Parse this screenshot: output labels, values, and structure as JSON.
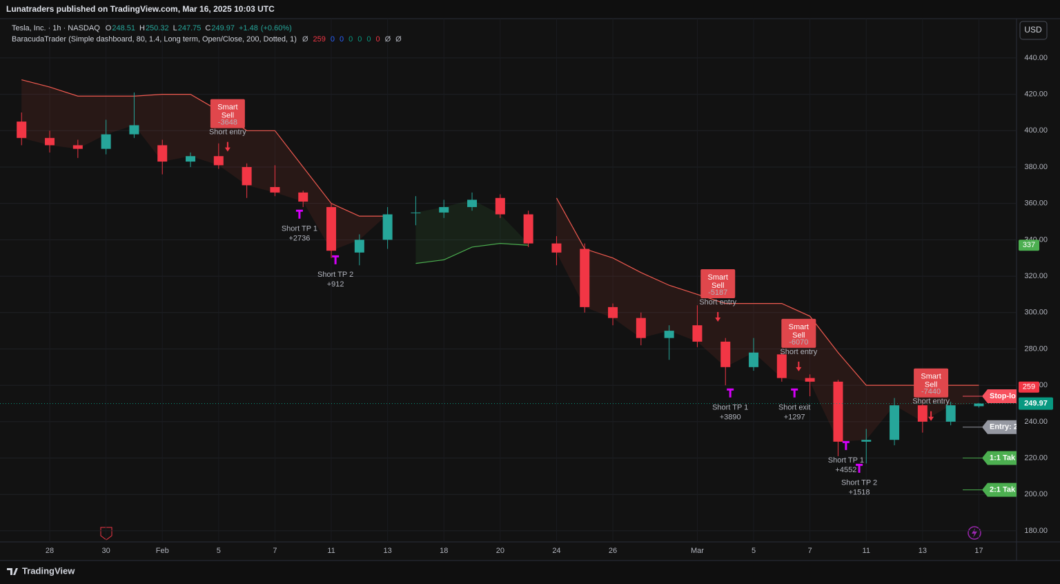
{
  "header": {
    "publisher": "Lunatraders published on TradingView.com, Mar 16, 2025 10:03 UTC",
    "currency": "USD",
    "footer": "TradingView"
  },
  "chart_data": {
    "type": "candlestick",
    "title": "Tesla, Inc. · 1h · NASDAQ",
    "ohlc_letters": [
      "O",
      "H",
      "L",
      "C"
    ],
    "change": "+1.48",
    "change_pct": "(+0.60%)",
    "indicator": {
      "name": "BaracudaTrader (Simple dashboard, 80, 1.4, Long term, Open/Close, 200, Dotted, 1)",
      "values": [
        "Ø",
        259,
        0,
        0,
        0,
        0,
        0,
        0,
        "Ø",
        "Ø"
      ],
      "colors": [
        "#b2b5be",
        "#f23645",
        "#2962ff",
        "#2962ff",
        "#089981",
        "#089981",
        "#089981",
        "#f23645",
        "#b2b5be",
        "#b2b5be"
      ]
    },
    "x": [
      -1,
      0,
      1,
      2,
      3,
      4,
      5,
      6,
      7,
      8,
      9,
      10,
      11,
      12,
      13,
      14,
      15,
      16,
      17,
      18,
      19,
      20,
      21,
      22,
      23,
      24,
      25,
      26,
      27,
      28,
      29,
      30,
      31,
      32,
      33
    ],
    "open": [
      405,
      396,
      392,
      390,
      398,
      392,
      383,
      386,
      380,
      369,
      366,
      358,
      333,
      340,
      355,
      355,
      358,
      363,
      354,
      338,
      335,
      303,
      297,
      286,
      293,
      284,
      270,
      277,
      264,
      262,
      229,
      230,
      249,
      240,
      248.51
    ],
    "high": [
      410,
      400,
      395,
      406,
      421,
      395,
      388,
      393,
      382,
      381,
      367,
      360,
      343,
      358,
      364,
      362,
      366,
      365,
      356,
      342,
      338,
      305,
      300,
      293,
      304,
      286,
      286,
      278,
      266,
      263,
      236,
      253,
      252,
      251,
      250.32
    ],
    "low": [
      392,
      388,
      385,
      387,
      396,
      376,
      380,
      379,
      363,
      364,
      358,
      330,
      326,
      335,
      348,
      352,
      356,
      352,
      336,
      326,
      300,
      293,
      282,
      274,
      281,
      260,
      268,
      262,
      254,
      221,
      217,
      227,
      234,
      238,
      247.75
    ],
    "close": [
      396,
      392,
      390,
      398,
      403,
      383,
      386,
      381,
      370,
      366,
      361,
      334,
      340,
      354,
      355,
      358,
      362,
      354,
      338,
      333,
      303,
      297,
      286,
      290,
      284,
      270,
      278,
      264,
      262,
      229,
      230,
      249,
      240,
      249,
      249.97
    ],
    "up_color": "#26a69a",
    "down_color": "#f23645",
    "trail": {
      "color": "#f05a50",
      "fill": "#f0503c",
      "values": [
        428,
        424,
        419,
        419,
        419,
        420,
        420,
        411,
        400,
        400,
        380,
        360,
        353,
        353,
        null,
        null,
        null,
        null,
        null,
        363,
        335,
        330,
        322,
        315,
        310,
        305,
        305,
        305,
        298,
        278,
        260,
        260,
        260,
        260,
        260
      ]
    },
    "support": {
      "color": "#4caf50",
      "fill": "#4caf50",
      "values": [
        null,
        null,
        null,
        null,
        null,
        null,
        null,
        null,
        null,
        null,
        null,
        null,
        null,
        null,
        327,
        329,
        336,
        338,
        337,
        null,
        null,
        null,
        null,
        null,
        null,
        null,
        null,
        null,
        null,
        null,
        null,
        null,
        null,
        null,
        null
      ]
    },
    "xlim": [
      -1.52,
      34.3
    ],
    "xticks": [
      {
        "value": 0,
        "label": "28"
      },
      {
        "value": 2,
        "label": "30"
      },
      {
        "value": 4,
        "label": "Feb"
      },
      {
        "value": 6,
        "label": "5"
      },
      {
        "value": 8,
        "label": "7"
      },
      {
        "value": 10,
        "label": "11"
      },
      {
        "value": 12,
        "label": "13"
      },
      {
        "value": 14,
        "label": "18"
      },
      {
        "value": 16,
        "label": "20"
      },
      {
        "value": 18,
        "label": "24"
      },
      {
        "value": 20,
        "label": "26"
      },
      {
        "value": 23,
        "label": "Mar"
      },
      {
        "value": 25,
        "label": "5"
      },
      {
        "value": 27,
        "label": "7"
      },
      {
        "value": 29,
        "label": "11"
      },
      {
        "value": 31,
        "label": "13"
      },
      {
        "value": 33,
        "label": "17"
      }
    ],
    "ylim": [
      173.9,
      461.6
    ],
    "yticks": [
      {
        "value": 180,
        "label": "180.00"
      },
      {
        "value": 200,
        "label": "200.00"
      },
      {
        "value": 220,
        "label": "220.00"
      },
      {
        "value": 240,
        "label": "240.00"
      },
      {
        "value": 260,
        "label": "260.00"
      },
      {
        "value": 280,
        "label": "280.00"
      },
      {
        "value": 300,
        "label": "300.00"
      },
      {
        "value": 320,
        "label": "320.00"
      },
      {
        "value": 340,
        "label": "340.00"
      },
      {
        "value": 360,
        "label": "360.00"
      },
      {
        "value": 380,
        "label": "380.00"
      },
      {
        "value": 400,
        "label": "400.00"
      },
      {
        "value": 420,
        "label": "420.00"
      },
      {
        "value": 440,
        "label": "440.00"
      }
    ],
    "grid": true,
    "signals": [
      {
        "kind": "sell",
        "x": 6.32,
        "price": 388.5,
        "title": [
          "Smart",
          "Sell"
        ],
        "pnl": "-3648",
        "text": "Short entry"
      },
      {
        "kind": "tp",
        "x": 8.87,
        "price": 353.9,
        "text": "Short TP 1",
        "pnl": "+2736"
      },
      {
        "kind": "tp",
        "x": 10.15,
        "price": 328.8,
        "text": "Short TP 2",
        "pnl": "+912"
      },
      {
        "kind": "sell",
        "x": 23.73,
        "price": 295,
        "title": [
          "Smart",
          "Sell"
        ],
        "pnl": "-5187",
        "text": "Short entry"
      },
      {
        "kind": "tp",
        "x": 24.17,
        "price": 255.6,
        "text": "Short TP 1",
        "pnl": "+3890"
      },
      {
        "kind": "sell",
        "x": 26.6,
        "price": 267.7,
        "title": [
          "Smart",
          "Sell"
        ],
        "pnl": "-6070",
        "text": "Short entry"
      },
      {
        "kind": "tp",
        "x": 26.45,
        "price": 255.6,
        "text": "Short exit",
        "pnl": "+1297"
      },
      {
        "kind": "tp",
        "x": 28.28,
        "price": 226.7,
        "text": "Short TP 1",
        "pnl": "+4552"
      },
      {
        "kind": "tp",
        "x": 28.75,
        "price": 214.2,
        "text": "Short TP 2",
        "pnl": "+1518"
      },
      {
        "kind": "sell",
        "x": 31.3,
        "price": 240.4,
        "title": [
          "Smart",
          "Sell"
        ],
        "pnl": "-7440",
        "text": "Short entry"
      }
    ],
    "price_labels": [
      {
        "value": 337,
        "color": "#4caf50"
      },
      {
        "value": 259,
        "color": "#f23645"
      }
    ],
    "last_color": "#089981",
    "levels": [
      {
        "label": "Stop-lo",
        "price": 254,
        "color": "#f7525f"
      },
      {
        "label": "Entry: 2",
        "price": 237,
        "color": "#9598a1"
      },
      {
        "label": "1:1 Tak",
        "price": 220,
        "color": "#4caf50"
      },
      {
        "label": "2:1 Tak",
        "price": 202.5,
        "color": "#4caf50"
      }
    ]
  }
}
